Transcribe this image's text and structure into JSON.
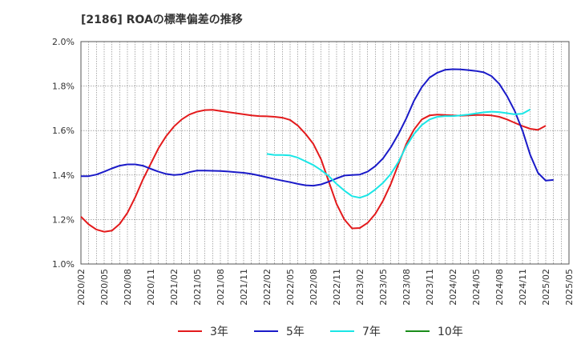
{
  "chart_data": {
    "type": "line",
    "title": "[2186]  ROAの標準偏差の推移",
    "y_ticks": [
      "1.0%",
      "1.2%",
      "1.4%",
      "1.6%",
      "1.8%",
      "2.0%"
    ],
    "ylim": [
      1.0,
      2.0
    ],
    "x_ticks": [
      "2020/02",
      "2020/05",
      "2020/08",
      "2020/11",
      "2021/02",
      "2021/05",
      "2021/08",
      "2021/11",
      "2022/02",
      "2022/05",
      "2022/08",
      "2022/11",
      "2023/02",
      "2023/05",
      "2023/08",
      "2023/11",
      "2024/02",
      "2024/05",
      "2024/08",
      "2024/11",
      "2025/02",
      "2025/05"
    ],
    "grid": true,
    "legend_position": "bottom",
    "series": [
      {
        "name": "3年",
        "color": "#e31a1c",
        "values": [
          1.213,
          1.178,
          1.155,
          1.145,
          1.15,
          1.18,
          1.23,
          1.3,
          1.38,
          1.45,
          1.52,
          1.575,
          1.618,
          1.65,
          1.672,
          1.685,
          1.692,
          1.693,
          1.688,
          1.683,
          1.678,
          1.673,
          1.668,
          1.665,
          1.664,
          1.662,
          1.658,
          1.648,
          1.622,
          1.585,
          1.54,
          1.47,
          1.37,
          1.27,
          1.2,
          1.16,
          1.162,
          1.185,
          1.225,
          1.285,
          1.36,
          1.45,
          1.54,
          1.605,
          1.65,
          1.668,
          1.672,
          1.67,
          1.668,
          1.667,
          1.668,
          1.67,
          1.67,
          1.668,
          1.662,
          1.65,
          1.635,
          1.62,
          1.608,
          1.603,
          1.622
        ]
      },
      {
        "name": "5年",
        "color": "#1a1ac8",
        "values": [
          1.395,
          1.395,
          1.402,
          1.415,
          1.43,
          1.442,
          1.448,
          1.448,
          1.442,
          1.428,
          1.415,
          1.405,
          1.4,
          1.403,
          1.413,
          1.42,
          1.42,
          1.419,
          1.418,
          1.416,
          1.413,
          1.41,
          1.405,
          1.398,
          1.39,
          1.382,
          1.375,
          1.368,
          1.36,
          1.354,
          1.352,
          1.358,
          1.37,
          1.385,
          1.398,
          1.4,
          1.402,
          1.415,
          1.44,
          1.475,
          1.525,
          1.585,
          1.655,
          1.735,
          1.795,
          1.838,
          1.86,
          1.873,
          1.876,
          1.875,
          1.872,
          1.868,
          1.862,
          1.845,
          1.81,
          1.755,
          1.688,
          1.6,
          1.49,
          1.41,
          1.375,
          1.378
        ]
      },
      {
        "name": "7年",
        "color": "#1ae6e6",
        "x_start": "2022/02",
        "values": [
          1.495,
          1.49,
          1.49,
          1.488,
          1.478,
          1.462,
          1.445,
          1.422,
          1.395,
          1.36,
          1.33,
          1.305,
          1.298,
          1.31,
          1.335,
          1.365,
          1.405,
          1.46,
          1.53,
          1.585,
          1.625,
          1.65,
          1.662,
          1.665,
          1.665,
          1.668,
          1.672,
          1.677,
          1.682,
          1.685,
          1.683,
          1.678,
          1.673,
          1.676,
          1.695
        ]
      },
      {
        "name": "10年",
        "color": "#1a8c1a",
        "values": []
      }
    ]
  }
}
